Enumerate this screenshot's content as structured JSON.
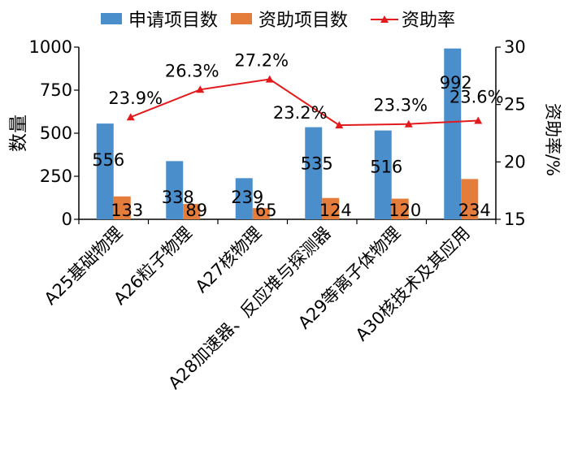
{
  "chart_data": {
    "type": "bar",
    "categories": [
      "A25基础物理",
      "A26粒子物理",
      "A27核物理",
      "A28加速器、反应堆与探测器",
      "A29等离子体物理",
      "A30核技术及其应用"
    ],
    "series": [
      {
        "name": "申请项目数",
        "type": "bar",
        "axis": "left",
        "color": "#4a8fcc",
        "values": [
          556,
          338,
          239,
          535,
          516,
          992
        ]
      },
      {
        "name": "资助项目数",
        "type": "bar",
        "axis": "left",
        "color": "#e47c3c",
        "values": [
          133,
          89,
          65,
          124,
          120,
          234
        ]
      },
      {
        "name": "资助率",
        "type": "line",
        "axis": "right",
        "color": "#e31a1c",
        "values": [
          23.9,
          26.3,
          27.2,
          23.2,
          23.3,
          23.6
        ],
        "labels": [
          "23.9%",
          "26.3%",
          "27.2%",
          "23.2%",
          "23.3%",
          "23.6%"
        ]
      }
    ],
    "ylabel": "数量",
    "y2label": "资助率/%",
    "ylim": [
      0,
      1000
    ],
    "y2lim": [
      15,
      30
    ],
    "yticks": [
      "0",
      "250",
      "500",
      "750",
      "1000"
    ],
    "y2ticks": [
      "15",
      "20",
      "25",
      "30"
    ],
    "legend_position": "top",
    "grid": false
  }
}
